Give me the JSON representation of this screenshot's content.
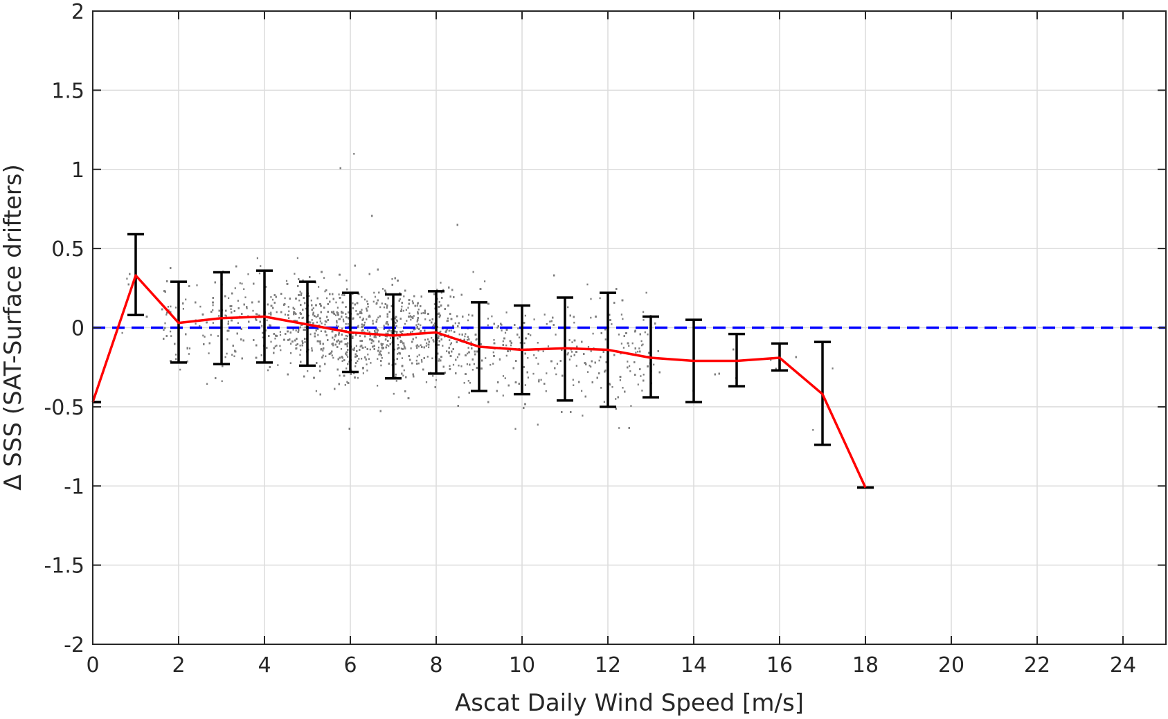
{
  "chart_data": {
    "type": "scatter",
    "title": "",
    "xlabel": "Ascat Daily Wind Speed [m/s]",
    "ylabel": "Δ SSS (SAT-Surface drifters)",
    "xlim": [
      0,
      25
    ],
    "ylim": [
      -2,
      2
    ],
    "xticks": [
      0,
      2,
      4,
      6,
      8,
      10,
      12,
      14,
      16,
      18,
      20,
      22,
      24
    ],
    "yticks": [
      -2,
      -1.5,
      -1,
      -0.5,
      0,
      0.5,
      1,
      1.5,
      2
    ],
    "grid": true,
    "zero_line": {
      "y": 0,
      "style": "dashed",
      "color": "#0000ff"
    },
    "mean_line": {
      "color": "#ff0000",
      "x": [
        0,
        1,
        2,
        3,
        4,
        5,
        6,
        7,
        8,
        9,
        10,
        11,
        12,
        13,
        14,
        15,
        16,
        17,
        18
      ],
      "y": [
        -0.47,
        0.33,
        0.03,
        0.06,
        0.07,
        0.02,
        -0.03,
        -0.05,
        -0.03,
        -0.12,
        -0.14,
        -0.13,
        -0.14,
        -0.19,
        -0.21,
        -0.21,
        -0.19,
        -0.42,
        -1.01
      ]
    },
    "error_bars": {
      "color": "#000000",
      "x": [
        0,
        1,
        2,
        3,
        4,
        5,
        6,
        7,
        8,
        9,
        10,
        11,
        12,
        13,
        14,
        15,
        16,
        17,
        18
      ],
      "low": [
        -0.47,
        0.08,
        -0.22,
        -0.23,
        -0.22,
        -0.24,
        -0.28,
        -0.32,
        -0.29,
        -0.4,
        -0.42,
        -0.46,
        -0.5,
        -0.44,
        -0.47,
        -0.37,
        -0.27,
        -0.74,
        -1.01
      ],
      "high": [
        -0.47,
        0.59,
        0.29,
        0.35,
        0.36,
        0.29,
        0.22,
        0.21,
        0.23,
        0.16,
        0.14,
        0.19,
        0.22,
        0.07,
        0.05,
        -0.04,
        -0.1,
        -0.09,
        -1.01
      ]
    },
    "scatter": {
      "color": "#808080",
      "point_count": 9000,
      "x_range": [
        0,
        18
      ],
      "cloud_shape": "mean_trend_with_spread"
    }
  }
}
